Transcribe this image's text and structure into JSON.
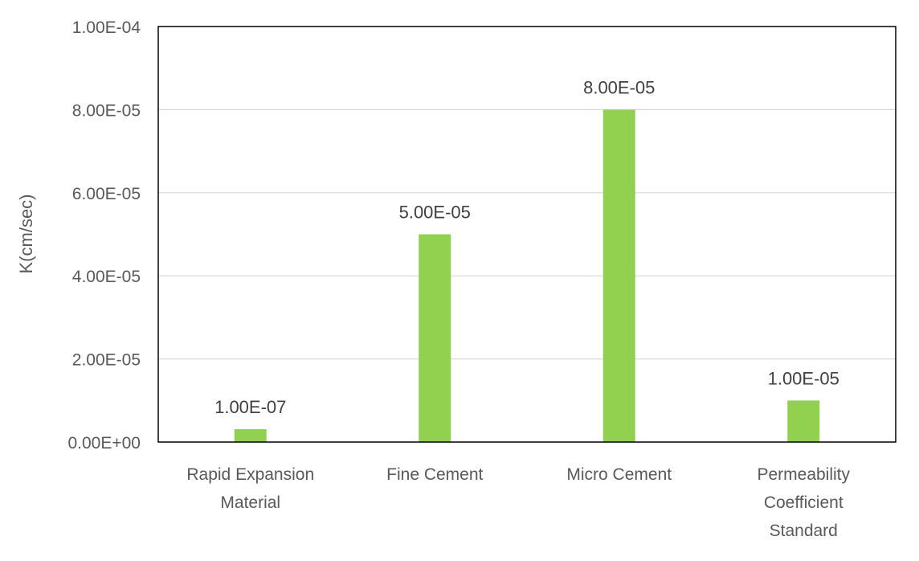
{
  "chart_data": {
    "type": "bar",
    "title": "",
    "xlabel": "",
    "ylabel": "K(cm/sec)",
    "ylim": [
      0,
      0.0001
    ],
    "grid": true,
    "legend": "none",
    "y_ticks": [
      {
        "value": 0,
        "label": "0.00E+00"
      },
      {
        "value": 2e-05,
        "label": "2.00E-05"
      },
      {
        "value": 4e-05,
        "label": "4.00E-05"
      },
      {
        "value": 6e-05,
        "label": "6.00E-05"
      },
      {
        "value": 8e-05,
        "label": "8.00E-05"
      },
      {
        "value": 0.0001,
        "label": "1.00E-04"
      }
    ],
    "categories": [
      [
        "Rapid Expansion",
        "Material"
      ],
      [
        "Fine Cement"
      ],
      [
        "Micro Cement"
      ],
      [
        "Permeability",
        "Coefficient",
        "Standard"
      ]
    ],
    "values": [
      1e-07,
      5e-05,
      8e-05,
      1e-05
    ],
    "data_labels": [
      "1.00E-07",
      "5.00E-05",
      "8.00E-05",
      "1.00E-05"
    ],
    "colors": {
      "bar": "#92D050",
      "grid": "#D9D9D9",
      "axis": "#000000",
      "text": "#595959"
    }
  }
}
